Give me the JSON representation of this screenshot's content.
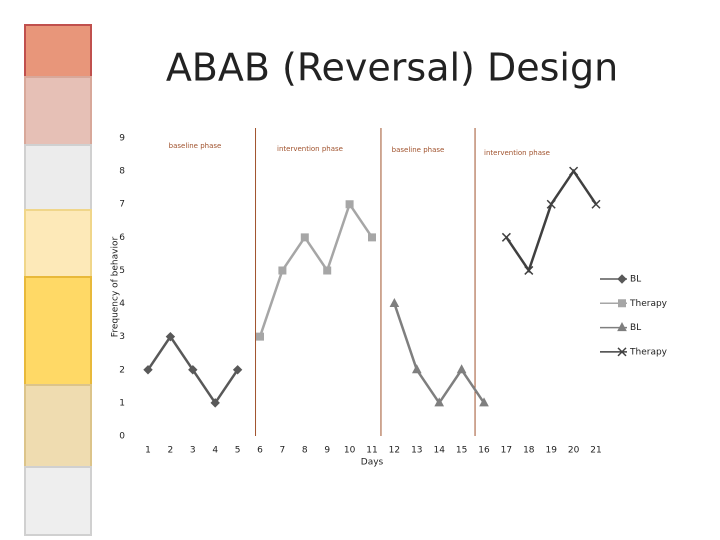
{
  "chart_data": {
    "type": "line",
    "title": "ABAB (Reversal) Design",
    "x_label": "Days",
    "y_label": "Frequency of behavior",
    "xlim": [
      0,
      22
    ],
    "xticks": [
      1,
      2,
      3,
      4,
      5,
      6,
      7,
      8,
      9,
      10,
      11,
      12,
      13,
      14,
      15,
      16,
      17,
      18,
      19,
      20,
      21
    ],
    "ylim": [
      0,
      9
    ],
    "yticks": [
      0,
      1,
      2,
      3,
      4,
      5,
      6,
      7,
      8,
      9
    ],
    "phase_changes": [
      5.8,
      11.4,
      15.6
    ],
    "phase_color": "#a0522d",
    "phase_labels": [
      "baseline phase",
      "intervention phase",
      "baseline phase",
      "intervention phase"
    ],
    "legend": "right",
    "series": [
      {
        "name": "BL",
        "color": "#595959",
        "marker": "diamond",
        "x": [
          1,
          2,
          3,
          4,
          5
        ],
        "values": [
          2,
          3,
          2,
          1,
          2
        ]
      },
      {
        "name": "Therapy",
        "color": "#a6a6a6",
        "marker": "square",
        "x": [
          6,
          7,
          8,
          9,
          10,
          11
        ],
        "values": [
          3,
          5,
          6,
          5,
          7,
          6
        ]
      },
      {
        "name": "BL",
        "color": "#7f7f7f",
        "marker": "triangle",
        "x": [
          12,
          13,
          14,
          15,
          16
        ],
        "values": [
          4,
          2,
          1,
          2,
          1
        ]
      },
      {
        "name": "Therapy",
        "color": "#404040",
        "marker": "x",
        "x": [
          17,
          18,
          19,
          20,
          21
        ],
        "values": [
          6,
          5,
          7,
          8,
          7
        ]
      }
    ]
  }
}
